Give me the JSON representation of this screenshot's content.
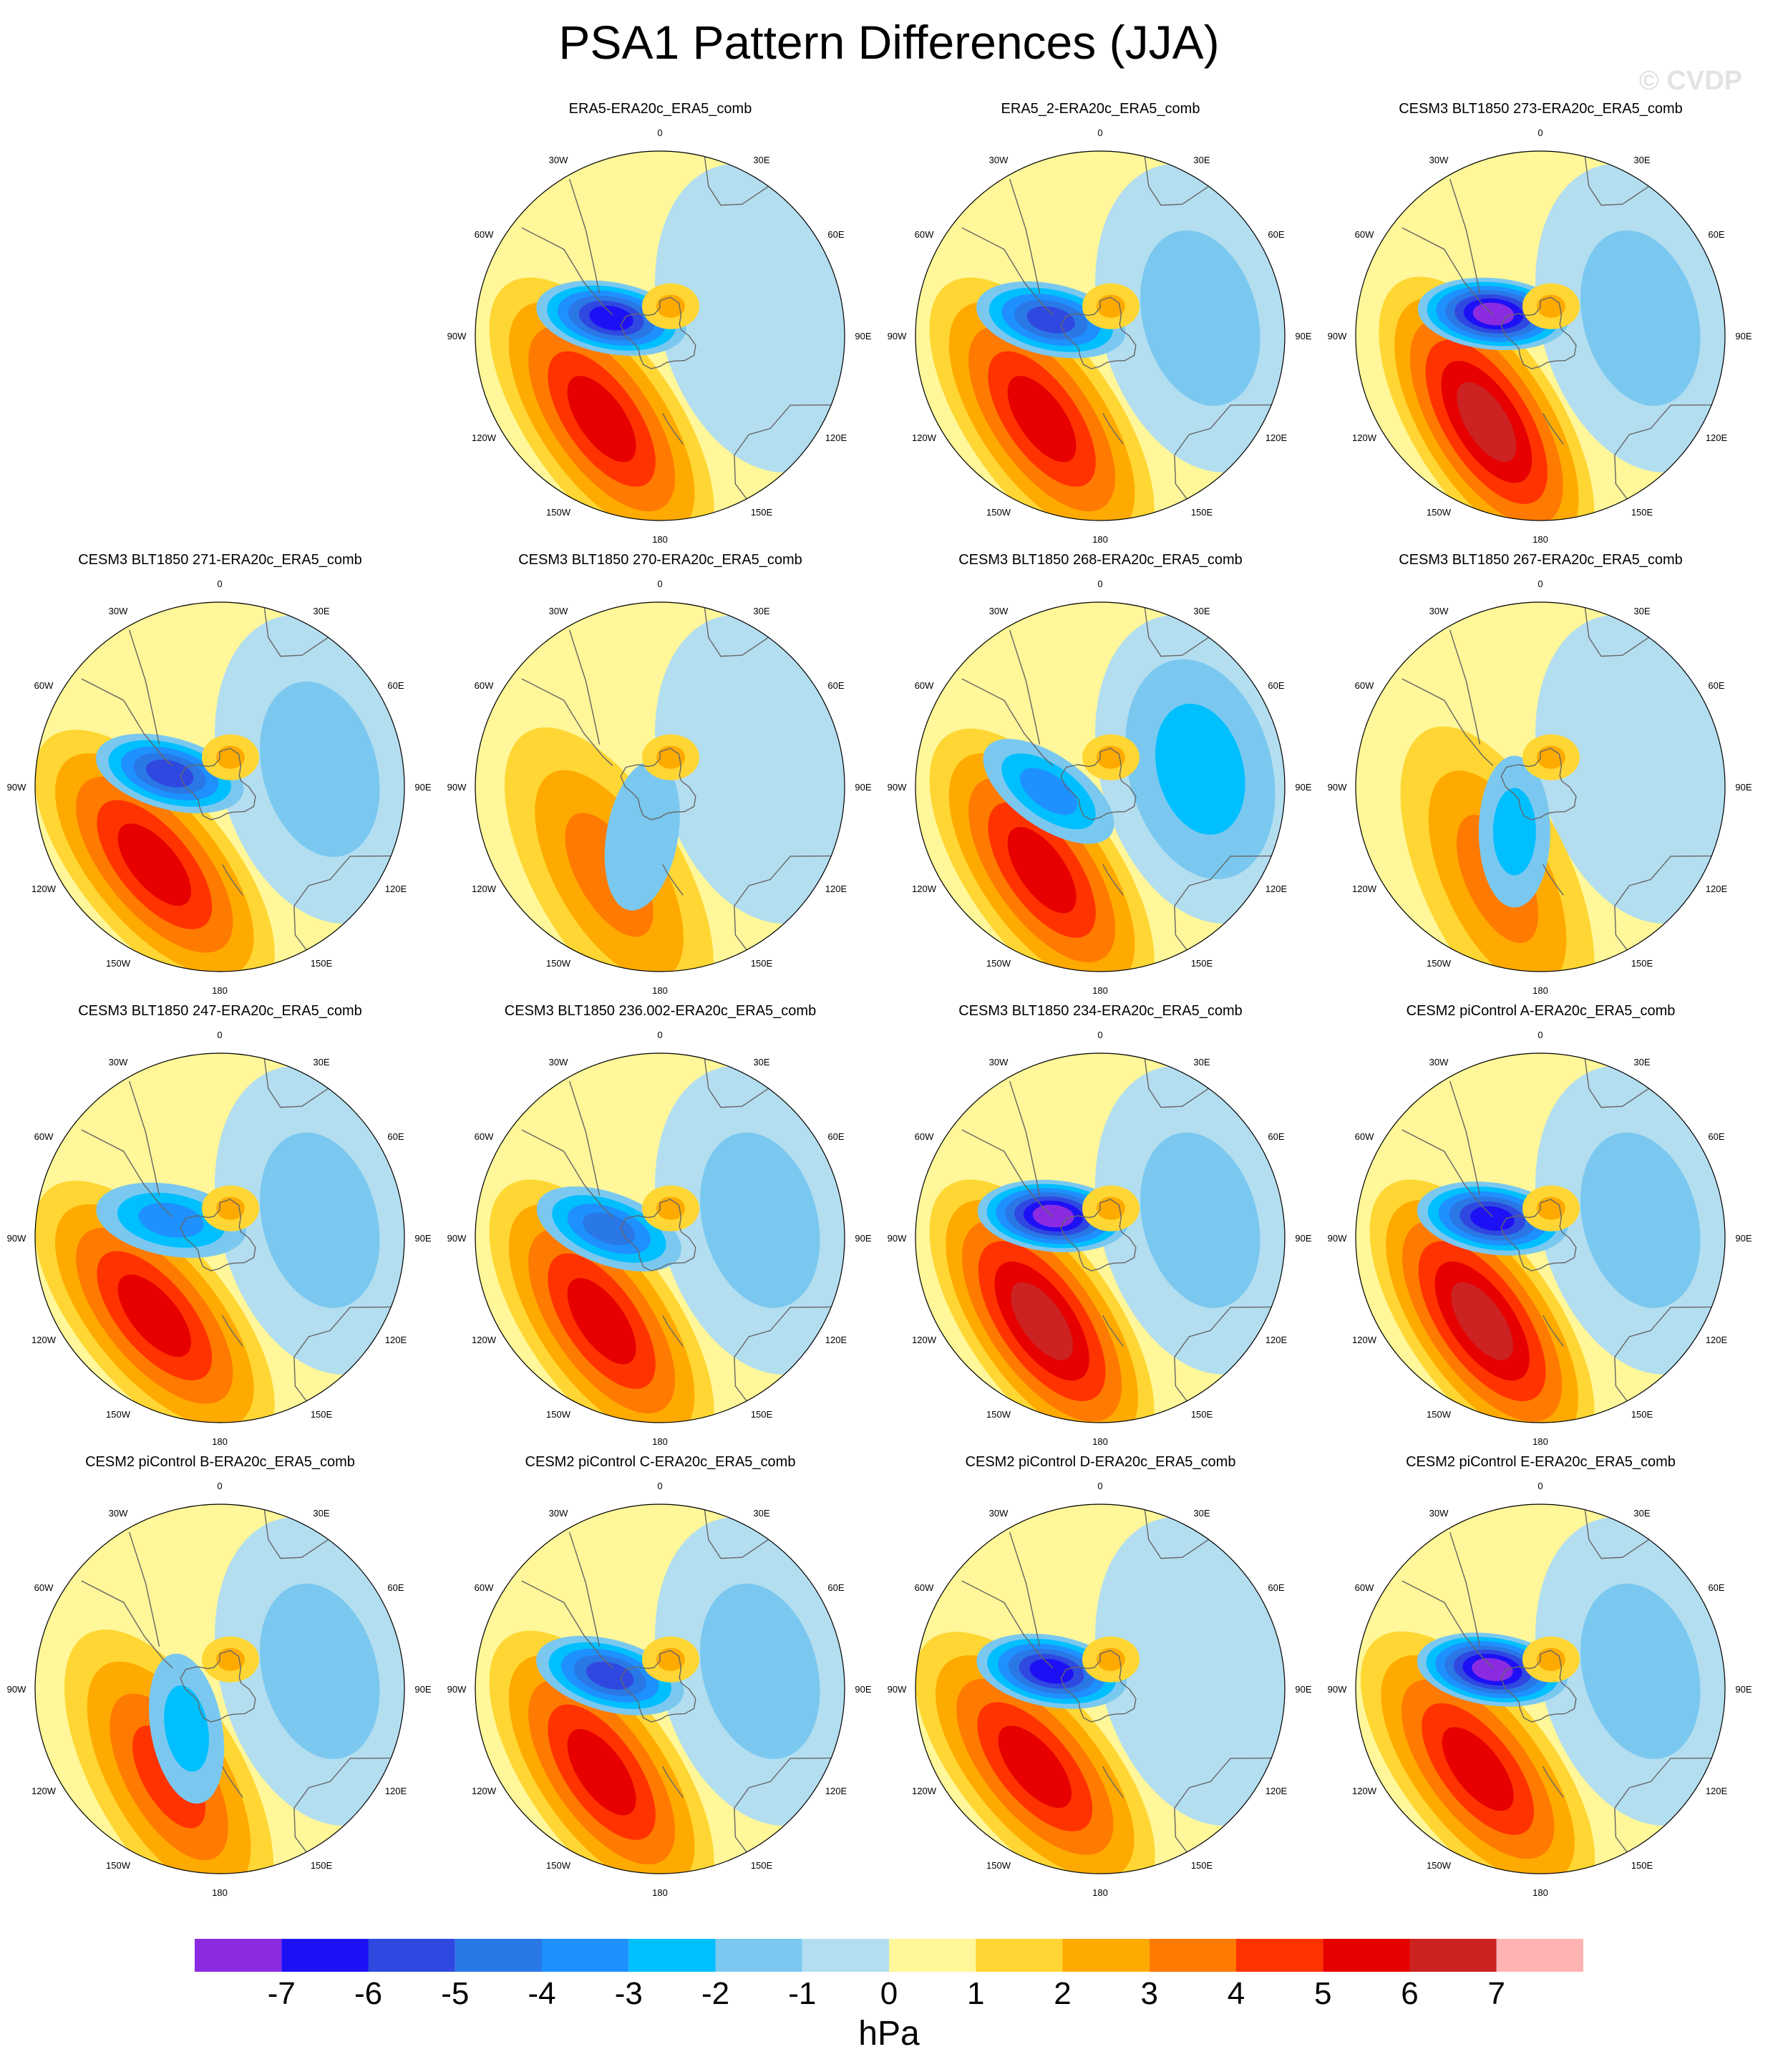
{
  "figure": {
    "title": "PSA1 Pattern Differences (JJA)",
    "watermark": "© CVDP",
    "colorbar_unit": "hPa"
  },
  "longitude_labels": [
    "0",
    "30E",
    "60E",
    "90E",
    "120E",
    "150E",
    "180",
    "150W",
    "120W",
    "90W",
    "60W",
    "30W"
  ],
  "colorbar": {
    "ticks": [
      "-7",
      "-6",
      "-5",
      "-4",
      "-3",
      "-2",
      "-1",
      "0",
      "1",
      "2",
      "3",
      "4",
      "5",
      "6",
      "7"
    ],
    "colors": [
      "#8a2be2",
      "#1d10f5",
      "#2f48e0",
      "#2a78e6",
      "#1e90ff",
      "#00bfff",
      "#7ac8f0",
      "#b3def0",
      "#fff799",
      "#ffd633",
      "#ffaa00",
      "#ff7a00",
      "#ff3300",
      "#e60000",
      "#cc2222",
      "#ffb3b3"
    ]
  },
  "panels": [
    {
      "title": "ERA5-ERA20c_ERA5_comb",
      "low": -6,
      "high": 5,
      "low_angle": 70,
      "high_angle": 145,
      "east": -1
    },
    {
      "title": "ERA5_2-ERA20c_ERA5_comb",
      "low": -5,
      "high": 5,
      "low_angle": 72,
      "high_angle": 145,
      "east": -2
    },
    {
      "title": "CESM3 BLT1850 273-ERA20c_ERA5_comb",
      "low": -7,
      "high": 6,
      "low_angle": 65,
      "high_angle": 148,
      "east": -2
    },
    {
      "title": "CESM3 BLT1850 271-ERA20c_ERA5_comb",
      "low": -5,
      "high": 5,
      "low_angle": 75,
      "high_angle": 140,
      "east": -2
    },
    {
      "title": "CESM3 BLT1850 270-ERA20c_ERA5_comb",
      "low": -1,
      "high": 3,
      "low_angle": 160,
      "high_angle": 150,
      "east": -1
    },
    {
      "title": "CESM3 BLT1850 268-ERA20c_ERA5_comb",
      "low": -3,
      "high": 5,
      "low_angle": 95,
      "high_angle": 145,
      "east": -3
    },
    {
      "title": "CESM3 BLT1850 267-ERA20c_ERA5_comb",
      "low": -2,
      "high": 3,
      "low_angle": 150,
      "high_angle": 155,
      "east": -1
    },
    {
      "title": "CESM3 BLT1850 247-ERA20c_ERA5_comb",
      "low": -3,
      "high": 5,
      "low_angle": 70,
      "high_angle": 140,
      "east": -2
    },
    {
      "title": "CESM3 BLT1850 236.002-ERA20c_ERA5_comb",
      "low": -4,
      "high": 5,
      "low_angle": 80,
      "high_angle": 145,
      "east": -2
    },
    {
      "title": "CESM3 BLT1850 234-ERA20c_ERA5_comb",
      "low": -7,
      "high": 6,
      "low_angle": 65,
      "high_angle": 145,
      "east": -2
    },
    {
      "title": "CESM2 piControl A-ERA20c_ERA5_comb",
      "low": -6,
      "high": 6,
      "low_angle": 68,
      "high_angle": 145,
      "east": -2
    },
    {
      "title": "CESM2 piControl B-ERA20c_ERA5_comb",
      "low": -2,
      "high": 4,
      "low_angle": 140,
      "high_angle": 150,
      "east": -2
    },
    {
      "title": "CESM2 piControl C-ERA20c_ERA5_comb",
      "low": -5,
      "high": 5,
      "low_angle": 75,
      "high_angle": 145,
      "east": -2
    },
    {
      "title": "CESM2 piControl D-ERA20c_ERA5_comb",
      "low": -6,
      "high": 5,
      "low_angle": 70,
      "high_angle": 140,
      "east": -1
    },
    {
      "title": "CESM2 piControl E-ERA20c_ERA5_comb",
      "low": -7,
      "high": 5,
      "low_angle": 68,
      "high_angle": 142,
      "east": -2
    }
  ]
}
